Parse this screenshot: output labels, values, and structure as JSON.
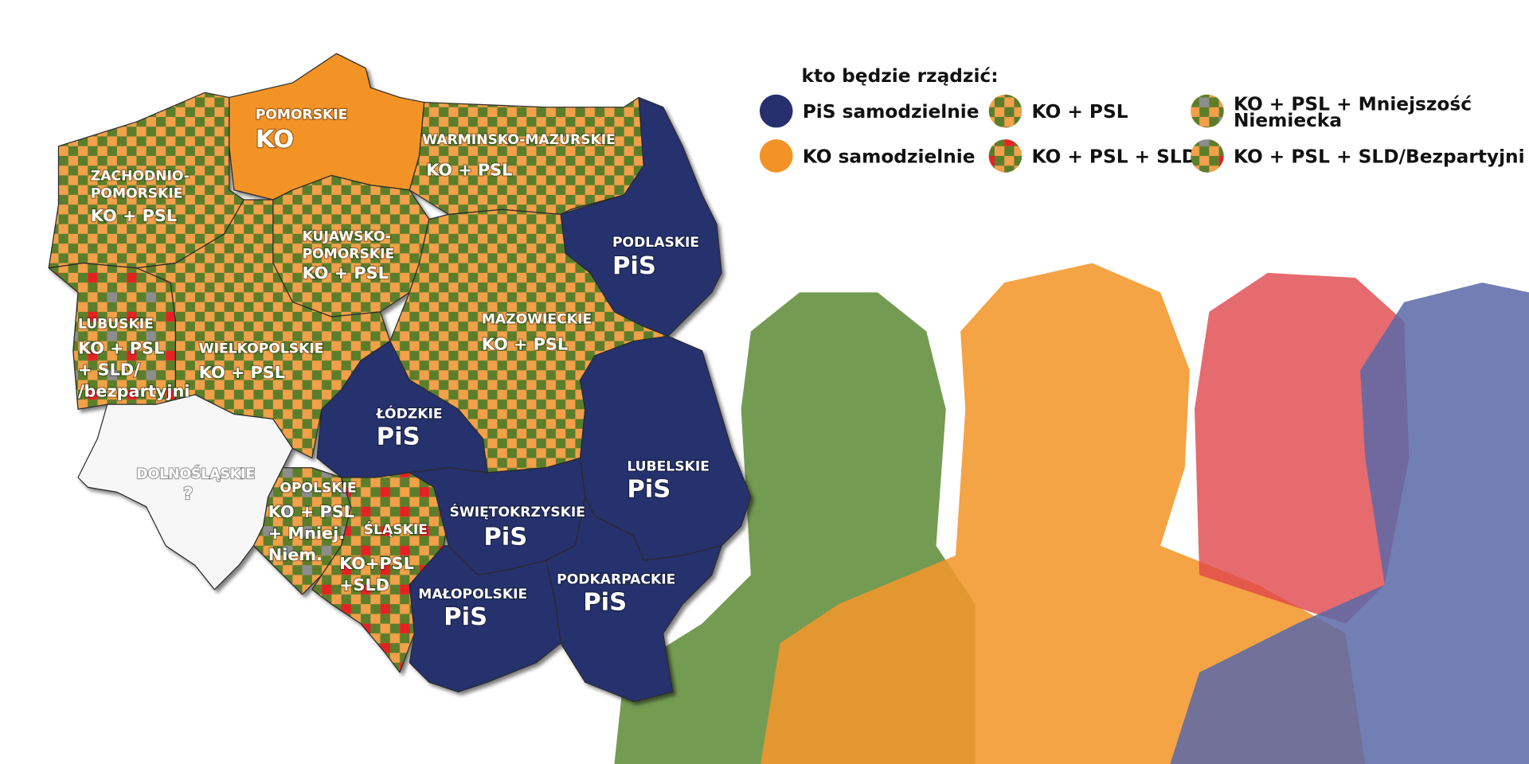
{
  "legend": {
    "title": "kto będzie rządzić:",
    "items": [
      {
        "label": [
          "PiS samodzielnie"
        ]
      },
      {
        "label": [
          "KO samodzielnie"
        ]
      },
      {
        "label": [
          "KO + PSL"
        ]
      },
      {
        "label": [
          "KO + PSL + SLD"
        ]
      },
      {
        "label": [
          "KO + PSL + Mniejszość",
          "Niemiecka"
        ]
      },
      {
        "label": [
          "KO + PSL + SLD/Bezpartyjni"
        ]
      }
    ]
  },
  "regions": [
    {
      "name": [
        "POMORSKIE"
      ],
      "label": [
        "KO"
      ]
    },
    {
      "name": [
        "ZACHODNIO-",
        "POMORSKIE"
      ],
      "label": [
        "KO + PSL"
      ]
    },
    {
      "name": [
        "WARMINSKO-MAZURSKIE"
      ],
      "label": [
        "KO + PSL"
      ]
    },
    {
      "name": [
        "PODLASKIE"
      ],
      "label": [
        "PiS"
      ]
    },
    {
      "name": [
        "KUJAWSKO-",
        "POMORSKIE"
      ],
      "label": [
        "KO + PSL"
      ]
    },
    {
      "name": [
        "MAZOWIECKIE"
      ],
      "label": [
        "KO + PSL"
      ]
    },
    {
      "name": [
        "LUBUSKIE"
      ],
      "label": [
        "KO + PSL",
        "+ SLD/",
        "/bezpartyjni"
      ]
    },
    {
      "name": [
        "WIELKOPOLSKIE"
      ],
      "label": [
        "KO + PSL"
      ]
    },
    {
      "name": [
        "ŁÓDZKIE"
      ],
      "label": [
        "PiS"
      ]
    },
    {
      "name": [
        "LUBELSKIE"
      ],
      "label": [
        "PiS"
      ]
    },
    {
      "name": [
        "DOLNOŚLĄSKIE"
      ],
      "label": [
        "?"
      ]
    },
    {
      "name": [
        "OPOLSKIE"
      ],
      "label": [
        "KO + PSL",
        "+ Mniej.",
        "Niem."
      ]
    },
    {
      "name": [
        "ŚLĄSKIE"
      ],
      "label": [
        "KO+PSL",
        "+SLD"
      ]
    },
    {
      "name": [
        "ŚWIĘTOKRZYSKIE"
      ],
      "label": [
        "PiS"
      ]
    },
    {
      "name": [
        "MAŁOPOLSKIE"
      ],
      "label": [
        "PiS"
      ]
    },
    {
      "name": [
        "PODKARPACKIE"
      ],
      "label": [
        "PiS"
      ]
    }
  ]
}
